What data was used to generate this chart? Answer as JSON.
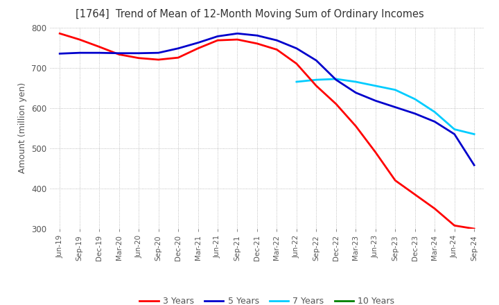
{
  "title": "[1764]  Trend of Mean of 12-Month Moving Sum of Ordinary Incomes",
  "ylabel": "Amount (million yen)",
  "ylim": [
    300,
    800
  ],
  "yticks": [
    300,
    400,
    500,
    600,
    700,
    800
  ],
  "colors": {
    "3y": "#FF0000",
    "5y": "#0000CC",
    "7y": "#00CCFF",
    "10y": "#008000"
  },
  "legend_labels": [
    "3 Years",
    "5 Years",
    "7 Years",
    "10 Years"
  ],
  "x_labels": [
    "Jun-19",
    "Sep-19",
    "Dec-19",
    "Mar-20",
    "Jun-20",
    "Sep-20",
    "Dec-20",
    "Mar-21",
    "Jun-21",
    "Sep-21",
    "Dec-21",
    "Mar-22",
    "Jun-22",
    "Sep-22",
    "Dec-22",
    "Mar-23",
    "Jun-23",
    "Sep-23",
    "Dec-23",
    "Mar-24",
    "Jun-24",
    "Sep-24"
  ],
  "series_3y": [
    785,
    770,
    752,
    733,
    724,
    720,
    725,
    748,
    768,
    770,
    760,
    745,
    710,
    655,
    610,
    555,
    490,
    420,
    385,
    350,
    308,
    300
  ],
  "series_5y": [
    735,
    737,
    737,
    736,
    736,
    737,
    748,
    762,
    778,
    785,
    780,
    768,
    748,
    718,
    670,
    638,
    618,
    602,
    586,
    566,
    535,
    458
  ],
  "series_7y": [
    null,
    null,
    null,
    null,
    null,
    null,
    null,
    null,
    null,
    null,
    null,
    null,
    665,
    670,
    672,
    665,
    655,
    645,
    622,
    590,
    547,
    535
  ],
  "series_10y": [
    null,
    null,
    null,
    null,
    null,
    null,
    null,
    null,
    null,
    null,
    null,
    null,
    null,
    null,
    null,
    null,
    null,
    null,
    null,
    null,
    null,
    null
  ],
  "background_color": "#FFFFFF",
  "grid_color": "#AAAAAA"
}
